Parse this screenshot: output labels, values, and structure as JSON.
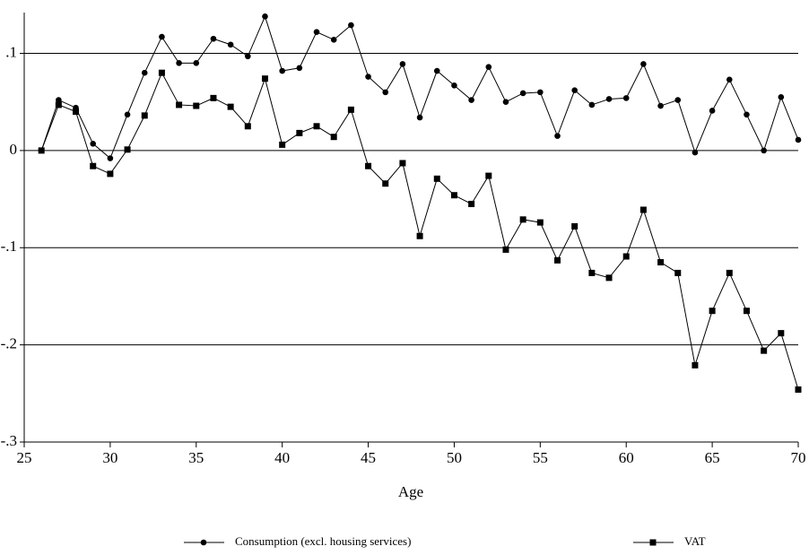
{
  "chart_data": {
    "type": "line",
    "x_label": "Age",
    "x": [
      26,
      27,
      28,
      29,
      30,
      31,
      32,
      33,
      34,
      35,
      36,
      37,
      38,
      39,
      40,
      41,
      42,
      43,
      44,
      45,
      46,
      47,
      48,
      49,
      50,
      51,
      52,
      53,
      54,
      55,
      56,
      57,
      58,
      59,
      60,
      61,
      62,
      63,
      64,
      65,
      66,
      67,
      68,
      69,
      70
    ],
    "series": [
      {
        "name": "Consumption (excl. housing services)",
        "color": "#000000",
        "marker": "circle",
        "values": [
          0,
          0.052,
          0.044,
          0.007,
          -0.008,
          0.037,
          0.08,
          0.117,
          0.09,
          0.09,
          0.115,
          0.109,
          0.097,
          0.138,
          0.082,
          0.085,
          0.122,
          0.114,
          0.129,
          0.076,
          0.06,
          0.089,
          0.034,
          0.082,
          0.067,
          0.052,
          0.086,
          0.05,
          0.059,
          0.06,
          0.015,
          0.062,
          0.047,
          0.053,
          0.054,
          0.089,
          0.046,
          0.052,
          -0.002,
          0.041,
          0.073,
          0.037,
          0,
          0.055,
          0.011
        ]
      },
      {
        "name": "VAT",
        "color": "#000000",
        "marker": "square",
        "values": [
          0,
          0.047,
          0.04,
          -0.016,
          -0.024,
          0.001,
          0.036,
          0.08,
          0.047,
          0.046,
          0.054,
          0.045,
          0.025,
          0.074,
          0.006,
          0.018,
          0.025,
          0.014,
          0.042,
          -0.016,
          -0.034,
          -0.013,
          -0.088,
          -0.029,
          -0.046,
          -0.055,
          -0.026,
          -0.102,
          -0.071,
          -0.074,
          -0.113,
          -0.078,
          -0.126,
          -0.131,
          -0.109,
          -0.061,
          -0.115,
          -0.126,
          -0.221,
          -0.165,
          -0.126,
          -0.165,
          -0.206,
          -0.188,
          -0.246
        ]
      }
    ],
    "xlim": [
      25,
      70
    ],
    "xticks": [
      25,
      30,
      35,
      40,
      45,
      50,
      55,
      60,
      65,
      70
    ],
    "ylim": [
      -0.3,
      0.142
    ],
    "yticks": [
      {
        "value": -0.3,
        "label": "-.3"
      },
      {
        "value": -0.2,
        "label": "-.2"
      },
      {
        "value": -0.1,
        "label": "-.1"
      },
      0,
      {
        "value": 0.1,
        "label": ".1"
      }
    ],
    "grid": true,
    "legend": "bottom"
  }
}
